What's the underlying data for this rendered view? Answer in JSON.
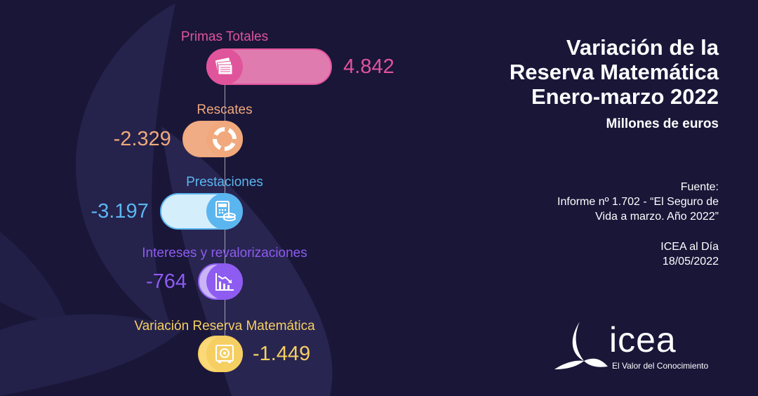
{
  "title_lines": [
    "Variación de la",
    "Reserva Matemática",
    "Enero-marzo 2022"
  ],
  "subtitle": "Millones de euros",
  "source": {
    "lines": [
      "Fuente:",
      "Informe nº 1.702 - “El Seguro de",
      "Vida a marzo. Año 2022”"
    ],
    "date_lines": [
      "ICEA al Día",
      "18/05/2022"
    ]
  },
  "logo": {
    "word": "icea",
    "tagline": "El Valor del Conocimiento"
  },
  "colors": {
    "background": "#191638",
    "primas": "#e0549b",
    "rescates": "#f0a87c",
    "prestaciones": "#5bb6f0",
    "intereses": "#8e5cf0",
    "variacion": "#f6cf63"
  },
  "chart_data": {
    "type": "bar",
    "title": "Variación de la Reserva Matemática Enero-marzo 2022",
    "ylabel": "Millones de euros",
    "categories": [
      "Primas Totales",
      "Rescates",
      "Prestaciones",
      "Intereses y revalorizaciones",
      "Variación Reserva Matemática"
    ],
    "values": [
      4842,
      -2329,
      -3197,
      -764,
      -1449
    ],
    "value_labels": [
      "4.842",
      "-2.329",
      "-3.197",
      "-764",
      "-1.449"
    ],
    "bar_colors": [
      "#e0549b",
      "#f0a87c",
      "#5bb6f0",
      "#8e5cf0",
      "#f6cf63"
    ],
    "bar_fill_colors": [
      "#e07bb0",
      "#f0ad85",
      "#d4eefc",
      "#c9b4f5",
      "#fbd978"
    ],
    "icons": [
      "money-stack-icon",
      "lifebuoy-icon",
      "calculator-coins-icon",
      "declining-chart-icon",
      "safe-icon"
    ]
  }
}
